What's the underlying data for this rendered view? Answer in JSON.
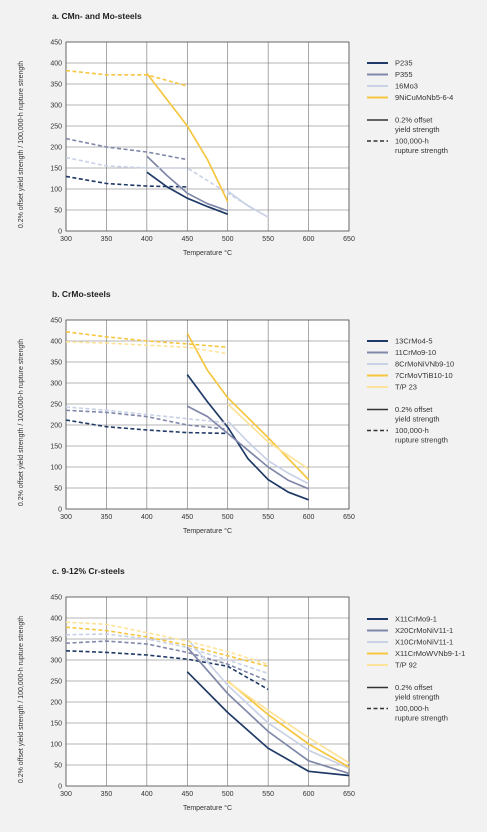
{
  "chart_data": [
    {
      "type": "line",
      "title": "a.  CMn- and Mo-steels",
      "xlabel": "Temperature °C",
      "ylabel": "0.2% offset yield strength / 100,000-h rupture strength",
      "xlim": [
        300,
        650
      ],
      "ylim": [
        0,
        450
      ],
      "xticks": [
        300,
        350,
        400,
        450,
        500,
        550,
        600,
        650
      ],
      "yticks": [
        0,
        50,
        100,
        150,
        200,
        250,
        300,
        350,
        400,
        450
      ],
      "grid": true,
      "legend_position": "right",
      "series": [
        {
          "name": "P235",
          "color": "#1f3a66",
          "yield": [
            [
              400,
              140
            ],
            [
              425,
              105
            ],
            [
              450,
              78
            ],
            [
              475,
              58
            ],
            [
              500,
              40
            ]
          ],
          "rupture": [
            [
              300,
              130
            ],
            [
              350,
              113
            ],
            [
              400,
              107
            ],
            [
              450,
              105
            ]
          ]
        },
        {
          "name": "P355",
          "color": "#8088aa",
          "yield": [
            [
              400,
              178
            ],
            [
              425,
              132
            ],
            [
              450,
              90
            ],
            [
              475,
              65
            ],
            [
              500,
              48
            ]
          ],
          "rupture": [
            [
              300,
              220
            ],
            [
              350,
              200
            ],
            [
              400,
              188
            ],
            [
              450,
              170
            ]
          ]
        },
        {
          "name": "16Mo3",
          "color": "#c9d1e6",
          "yield": [
            [
              500,
              95
            ],
            [
              525,
              60
            ],
            [
              550,
              33
            ]
          ],
          "rupture": [
            [
              300,
              175
            ],
            [
              350,
              155
            ],
            [
              400,
              150
            ],
            [
              450,
              150
            ],
            [
              500,
              90
            ],
            [
              530,
              55
            ]
          ]
        },
        {
          "name": "9NiCuMoNb5-6-4",
          "color": "#f6c640",
          "yield": [
            [
              400,
              375
            ],
            [
              450,
              250
            ],
            [
              475,
              170
            ],
            [
              500,
              70
            ]
          ],
          "rupture": [
            [
              300,
              382
            ],
            [
              350,
              372
            ],
            [
              400,
              372
            ],
            [
              450,
              345
            ]
          ]
        }
      ],
      "legend_style": {
        "solid": "0.2% offset\nyield strength",
        "dashed": "100,000-h\nrupture strength"
      }
    },
    {
      "type": "line",
      "title": "b.  CrMo-steels",
      "xlabel": "Temperature °C",
      "ylabel": "0.2% offset yield strength / 100,000-h rupture strength",
      "xlim": [
        300,
        650
      ],
      "ylim": [
        0,
        450
      ],
      "xticks": [
        300,
        350,
        400,
        450,
        500,
        550,
        600,
        650
      ],
      "yticks": [
        0,
        50,
        100,
        150,
        200,
        250,
        300,
        350,
        400,
        450
      ],
      "grid": true,
      "legend_position": "right",
      "series": [
        {
          "name": "13CrMo4-5",
          "color": "#1f3a66",
          "yield": [
            [
              450,
              320
            ],
            [
              475,
              255
            ],
            [
              500,
              195
            ],
            [
              525,
              120
            ],
            [
              550,
              70
            ],
            [
              575,
              40
            ],
            [
              600,
              22
            ]
          ],
          "rupture": [
            [
              300,
              212
            ],
            [
              350,
              196
            ],
            [
              400,
              188
            ],
            [
              450,
              182
            ],
            [
              500,
              180
            ]
          ]
        },
        {
          "name": "11CrMo9-10",
          "color": "#8088aa",
          "yield": [
            [
              450,
              245
            ],
            [
              475,
              220
            ],
            [
              500,
              180
            ],
            [
              525,
              140
            ],
            [
              550,
              100
            ],
            [
              575,
              68
            ],
            [
              600,
              48
            ]
          ],
          "rupture": [
            [
              300,
              235
            ],
            [
              350,
              230
            ],
            [
              400,
              220
            ],
            [
              450,
              200
            ],
            [
              500,
              190
            ]
          ]
        },
        {
          "name": "8CrMoNiVNb9-10",
          "color": "#c9d1e6",
          "yield": [
            [
              500,
              210
            ],
            [
              525,
              160
            ],
            [
              550,
              115
            ],
            [
              575,
              85
            ],
            [
              600,
              60
            ]
          ],
          "rupture": [
            [
              300,
              243
            ],
            [
              350,
              235
            ],
            [
              400,
              225
            ],
            [
              450,
              215
            ],
            [
              500,
              205
            ]
          ]
        },
        {
          "name": "7CrMoVTiB10-10",
          "color": "#f6c640",
          "yield": [
            [
              450,
              418
            ],
            [
              475,
              330
            ],
            [
              500,
              265
            ],
            [
              550,
              170
            ],
            [
              600,
              70
            ]
          ],
          "rupture": [
            [
              300,
              422
            ],
            [
              350,
              410
            ],
            [
              400,
              400
            ],
            [
              450,
              393
            ],
            [
              500,
              385
            ]
          ]
        },
        {
          "name": "T/P 23",
          "color": "#fde39a",
          "yield": [
            [
              500,
              250
            ],
            [
              550,
              160
            ],
            [
              600,
              95
            ]
          ],
          "rupture": [
            [
              300,
              398
            ],
            [
              350,
              395
            ],
            [
              400,
              390
            ],
            [
              450,
              385
            ],
            [
              500,
              370
            ]
          ]
        }
      ],
      "legend_style": {
        "solid": "0.2% offset\nyield strength",
        "dashed": "100,000-h\nrupture strength"
      }
    },
    {
      "type": "line",
      "title": "c.  9-12% Cr-steels",
      "xlabel": "Temperature °C",
      "ylabel": "0.2% offset yield strength / 100,000-h rupture strength",
      "xlim": [
        300,
        650
      ],
      "ylim": [
        0,
        450
      ],
      "xticks": [
        300,
        350,
        400,
        450,
        500,
        550,
        600,
        650
      ],
      "yticks": [
        0,
        50,
        100,
        150,
        200,
        250,
        300,
        350,
        400,
        450
      ],
      "grid": true,
      "legend_position": "right",
      "series": [
        {
          "name": "X11CrMo9-1",
          "color": "#1f3a66",
          "yield": [
            [
              450,
              272
            ],
            [
              500,
              175
            ],
            [
              550,
              90
            ],
            [
              600,
              35
            ],
            [
              650,
              25
            ]
          ],
          "rupture": [
            [
              300,
              322
            ],
            [
              350,
              318
            ],
            [
              400,
              312
            ],
            [
              450,
              302
            ],
            [
              500,
              285
            ],
            [
              550,
              230
            ]
          ]
        },
        {
          "name": "X20CrMoNiV11-1",
          "color": "#8088aa",
          "yield": [
            [
              450,
              330
            ],
            [
              500,
              220
            ],
            [
              550,
              130
            ],
            [
              600,
              60
            ],
            [
              650,
              30
            ]
          ],
          "rupture": [
            [
              300,
              340
            ],
            [
              350,
              345
            ],
            [
              400,
              338
            ],
            [
              450,
              318
            ],
            [
              500,
              290
            ],
            [
              550,
              250
            ]
          ]
        },
        {
          "name": "X10CrMoNiV11-1",
          "color": "#c9d1e6",
          "yield": [
            [
              450,
              350
            ],
            [
              500,
              240
            ],
            [
              550,
              150
            ],
            [
              600,
              85
            ],
            [
              650,
              42
            ]
          ],
          "rupture": [
            [
              300,
              360
            ],
            [
              350,
              362
            ],
            [
              400,
              350
            ],
            [
              450,
              330
            ],
            [
              500,
              300
            ],
            [
              550,
              268
            ]
          ]
        },
        {
          "name": "X11CrMoWVNb9-1-1",
          "color": "#f6c640",
          "yield": [
            [
              500,
              250
            ],
            [
              550,
              170
            ],
            [
              600,
              100
            ],
            [
              650,
              45
            ]
          ],
          "rupture": [
            [
              300,
              378
            ],
            [
              350,
              370
            ],
            [
              400,
              355
            ],
            [
              450,
              335
            ],
            [
              500,
              310
            ],
            [
              550,
              285
            ]
          ]
        },
        {
          "name": "T/P 92",
          "color": "#fde39a",
          "yield": [
            [
              500,
              248
            ],
            [
              550,
              180
            ],
            [
              600,
              115
            ],
            [
              650,
              55
            ]
          ],
          "rupture": [
            [
              300,
              390
            ],
            [
              350,
              385
            ],
            [
              400,
              365
            ],
            [
              450,
              345
            ],
            [
              500,
              320
            ],
            [
              550,
              290
            ]
          ]
        }
      ],
      "legend_style": {
        "solid": "0.2% offset\nyield strength",
        "dashed": "100,000-h\nrupture strength"
      }
    }
  ]
}
